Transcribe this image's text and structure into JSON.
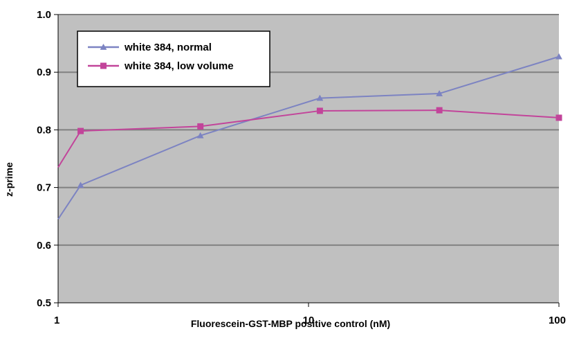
{
  "chart_data": {
    "type": "line",
    "title": "",
    "xlabel": "Fluorescein-GST-MBP positive control (nM)",
    "ylabel": "z-prime",
    "x_scale": "log",
    "xlim": [
      1,
      100
    ],
    "ylim": [
      0.5,
      1.0
    ],
    "x_ticks": [
      1,
      10,
      100
    ],
    "x_tick_labels": [
      "1",
      "10",
      "100"
    ],
    "y_ticks": [
      0.5,
      0.6,
      0.7,
      0.8,
      0.9,
      1.0
    ],
    "y_tick_labels": [
      "0.5",
      "0.6",
      "0.7",
      "0.8",
      "0.9",
      "1.0"
    ],
    "grid": "horizontal",
    "legend_position": "top-left",
    "colors": {
      "plot_background": "#c0c0c0",
      "grid": "#808080"
    },
    "series": [
      {
        "name": "white 384, normal",
        "color": "#7c83c2",
        "marker": "triangle",
        "x": [
          1,
          1.23,
          3.7,
          11.1,
          33.3,
          100
        ],
        "y": [
          0.645,
          0.704,
          0.79,
          0.855,
          0.863,
          0.927
        ]
      },
      {
        "name": "white 384, low volume",
        "color": "#c2449a",
        "marker": "square",
        "x": [
          1,
          1.23,
          3.7,
          11.1,
          33.3,
          100
        ],
        "y": [
          0.735,
          0.798,
          0.806,
          0.833,
          0.834,
          0.821
        ]
      }
    ]
  }
}
